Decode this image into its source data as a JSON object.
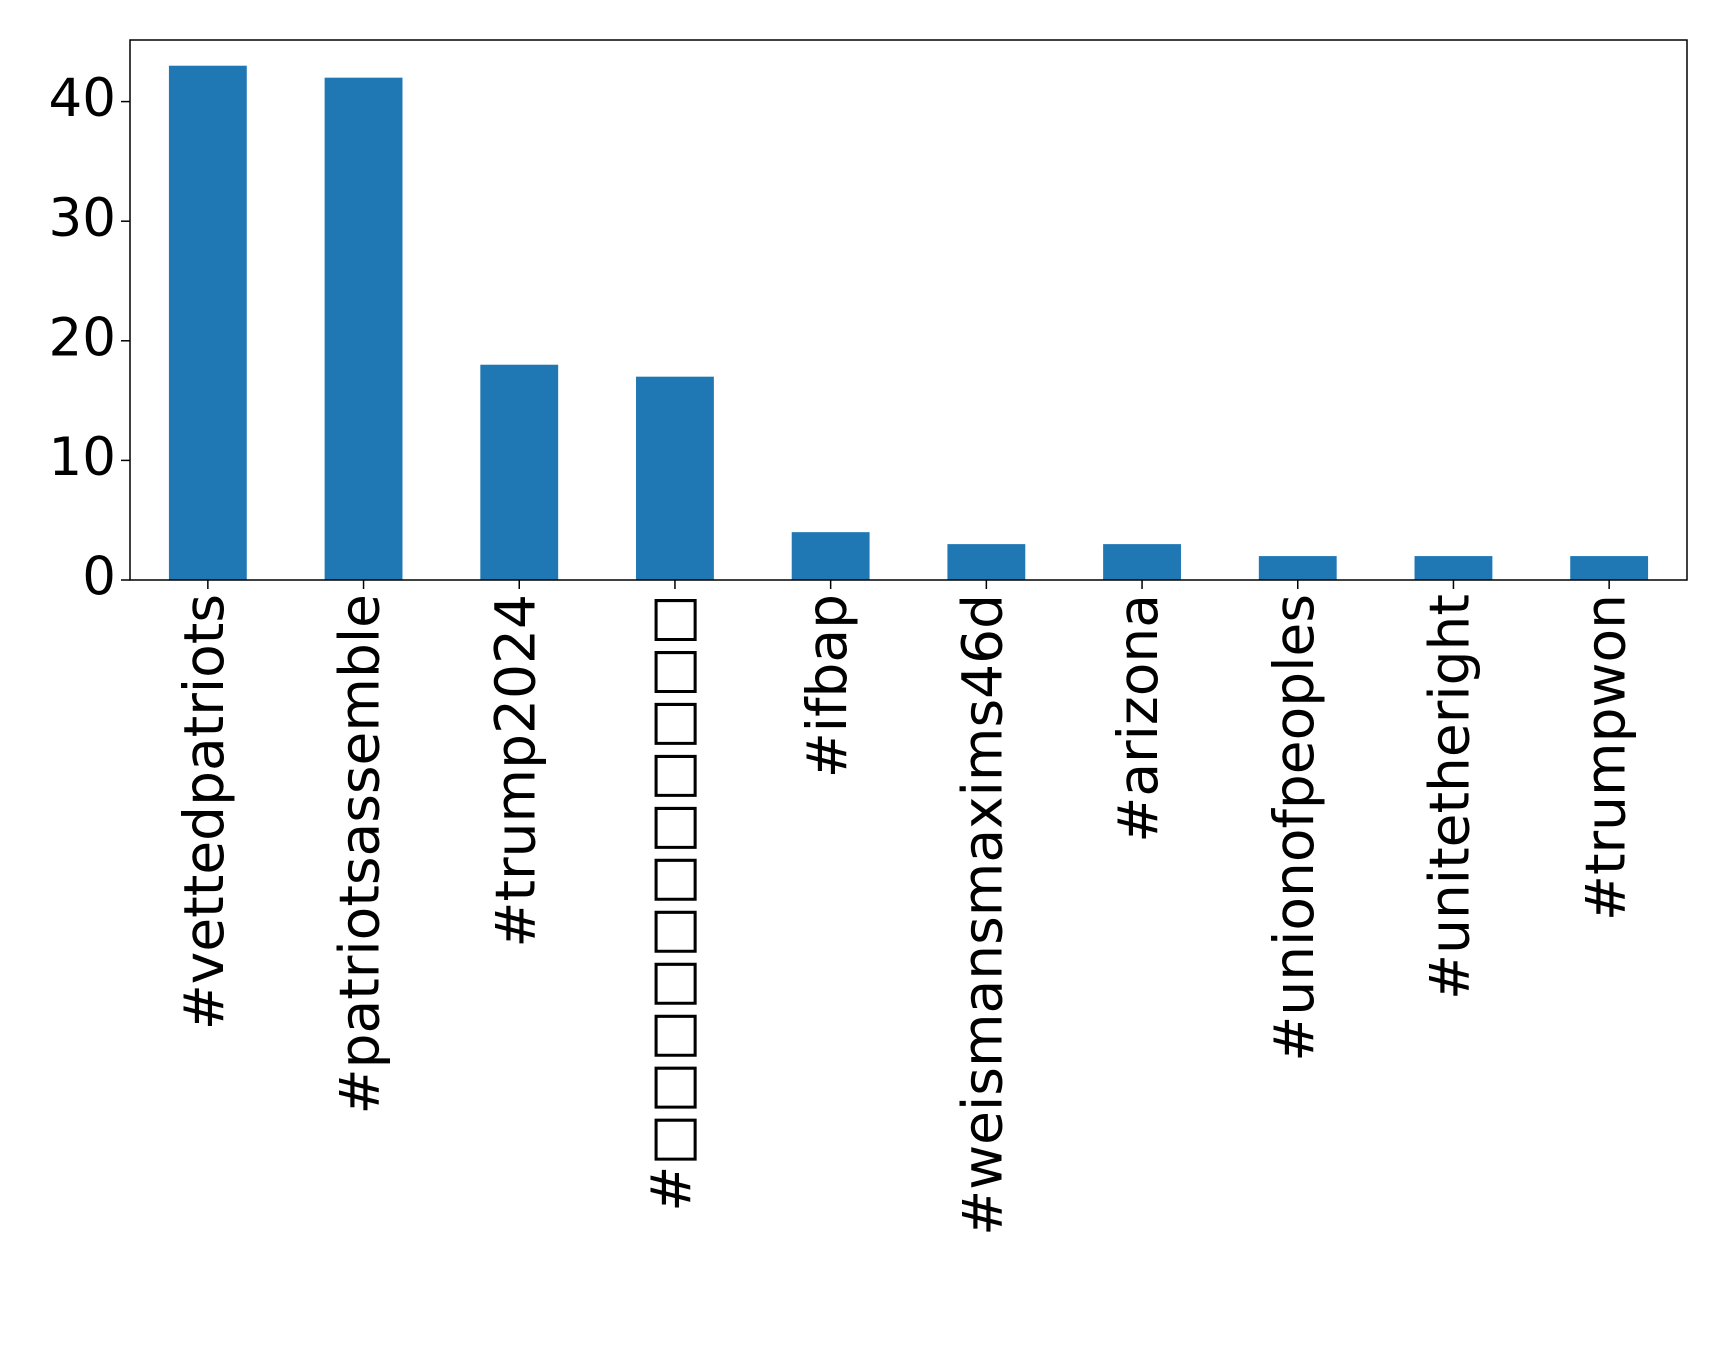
{
  "chart_data": {
    "type": "bar",
    "categories": [
      "#vettedpatriots",
      "#patriotsassemble",
      "#trump2024",
      "#□□□□□□□□□□□",
      "#ifbap",
      "#weismansmaxims46d",
      "#arizona",
      "#unionofpeoples",
      "#unitetheright",
      "#trumpwon"
    ],
    "values": [
      43,
      42,
      18,
      17,
      4,
      3,
      3,
      2,
      2,
      2
    ],
    "color": "#1f77b4",
    "ylim": [
      0,
      45.15
    ],
    "yticks": [
      0,
      10,
      20,
      30,
      40
    ],
    "grid": false
  }
}
